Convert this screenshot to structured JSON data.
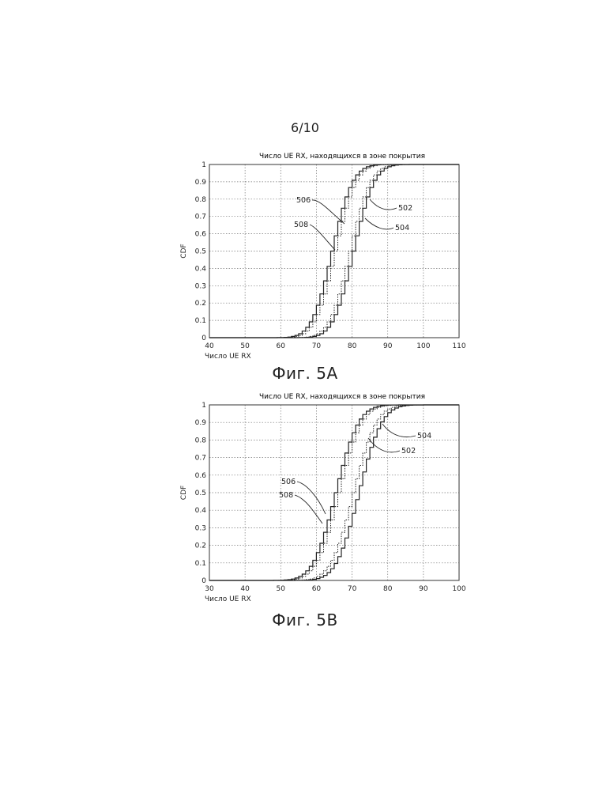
{
  "page_number": "6/10",
  "chart_data": [
    {
      "type": "line",
      "step": true,
      "figure_caption": "Фиг. 5A",
      "title": "Число UE RX, находящихся в зоне покрытия",
      "xlabel": "Число UE RX",
      "ylabel": "CDF",
      "xlim": [
        40,
        110
      ],
      "ylim": [
        0,
        1
      ],
      "xticks": [
        "40",
        "50",
        "60",
        "70",
        "80",
        "90",
        "100",
        "110"
      ],
      "yticks": [
        "0",
        "0.1",
        "0.2",
        "0.3",
        "0.4",
        "0.5",
        "0.6",
        "0.7",
        "0.8",
        "0.9",
        "1"
      ],
      "grid": true,
      "series": [
        {
          "name": "506",
          "style": "solid",
          "cdf_mean": 74,
          "cdf_spread": 4.5
        },
        {
          "name": "508",
          "style": "dotted",
          "cdf_mean": 75,
          "cdf_spread": 4.5
        },
        {
          "name": "502",
          "style": "dotted",
          "cdf_mean": 79,
          "cdf_spread": 4.5
        },
        {
          "name": "504",
          "style": "solid",
          "cdf_mean": 80,
          "cdf_spread": 4.5
        }
      ],
      "annotations": [
        "506",
        "508",
        "502",
        "504"
      ]
    },
    {
      "type": "line",
      "step": true,
      "figure_caption": "Фиг. 5B",
      "title": "Число UE RX, находящихся в зоне покрытия",
      "xlabel": "Число UE RX",
      "ylabel": "CDF",
      "xlim": [
        30,
        100
      ],
      "ylim": [
        0,
        1
      ],
      "xticks": [
        "30",
        "40",
        "50",
        "60",
        "70",
        "80",
        "90",
        "100"
      ],
      "yticks": [
        "0",
        "0.1",
        "0.2",
        "0.3",
        "0.4",
        "0.5",
        "0.6",
        "0.7",
        "0.8",
        "0.9",
        "1"
      ],
      "grid": true,
      "series": [
        {
          "name": "506",
          "style": "solid",
          "cdf_mean": 65,
          "cdf_spread": 5
        },
        {
          "name": "508",
          "style": "dotted",
          "cdf_mean": 66,
          "cdf_spread": 5
        },
        {
          "name": "504",
          "style": "dotted",
          "cdf_mean": 70,
          "cdf_spread": 5
        },
        {
          "name": "502",
          "style": "solid",
          "cdf_mean": 71.5,
          "cdf_spread": 5
        }
      ],
      "annotations": [
        "506",
        "508",
        "504",
        "502"
      ]
    }
  ]
}
